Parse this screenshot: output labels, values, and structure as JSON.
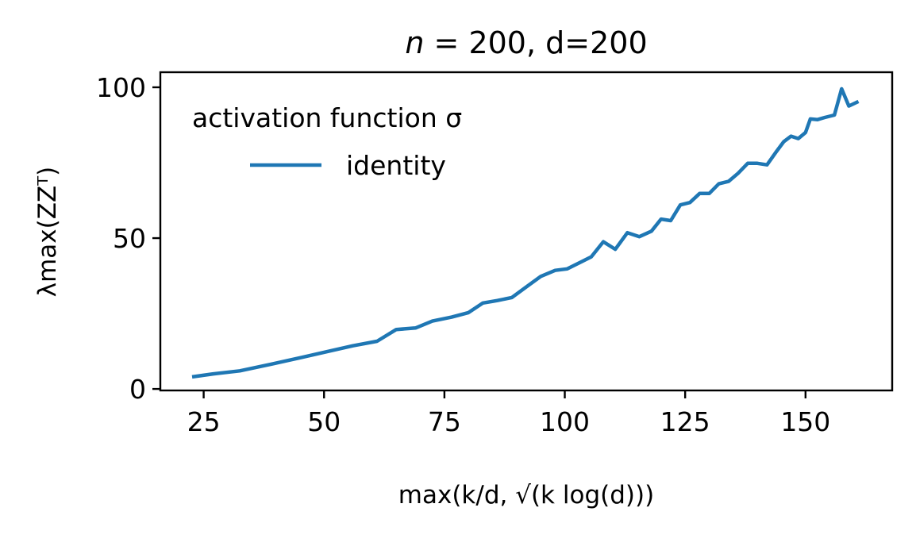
{
  "chart_data": {
    "type": "line",
    "title": "n = 200, d=200",
    "title_parts": {
      "italic": "n",
      "rest": " = 200, d=200"
    },
    "xlabel": "max(k/d, √(k log(d)))",
    "ylabel": "λmax(ZZᵀ)",
    "xlim": [
      16,
      168
    ],
    "ylim": [
      -0.5,
      105
    ],
    "xticks": [
      25,
      50,
      75,
      100,
      125,
      150
    ],
    "yticks": [
      0,
      50,
      100
    ],
    "xtick_labels": [
      "25",
      "50",
      "75",
      "100",
      "125",
      "150"
    ],
    "ytick_labels": [
      "0",
      "50",
      "100"
    ],
    "grid": false,
    "legend": {
      "placement": "top-left",
      "title": "activation function σ",
      "entries": [
        "identity"
      ]
    },
    "series": [
      {
        "name": "identity",
        "color": "#1f77b4",
        "x": [
          22.6,
          27.0,
          32.5,
          39.0,
          45.5,
          51.0,
          56.0,
          61.0,
          65.0,
          69.0,
          72.5,
          76.5,
          80.0,
          83.0,
          86.0,
          89.0,
          92.0,
          95.0,
          98.0,
          100.5,
          103.0,
          105.5,
          108.0,
          110.5,
          113.0,
          115.5,
          118.0,
          120.0,
          122.0,
          124.0,
          126.0,
          128.0,
          130.0,
          132.0,
          134.0,
          136.0,
          138.0,
          140.0,
          142.0,
          144.0,
          145.5,
          147.0,
          148.5,
          150.0,
          151.0,
          152.5,
          154.0,
          156.0,
          157.5,
          159.0,
          161.0
        ],
        "y": [
          4.0,
          5.0,
          6.0,
          8.2,
          10.5,
          12.5,
          14.3,
          15.8,
          19.7,
          20.2,
          22.5,
          23.8,
          25.3,
          28.5,
          29.3,
          30.3,
          33.8,
          37.3,
          39.3,
          39.8,
          41.8,
          43.8,
          48.8,
          46.3,
          51.8,
          50.5,
          52.3,
          56.3,
          55.8,
          61.0,
          61.8,
          64.8,
          64.8,
          68.0,
          68.8,
          71.5,
          74.8,
          74.8,
          74.3,
          78.8,
          82.0,
          83.8,
          83.0,
          85.0,
          89.5,
          89.3,
          90.0,
          90.8,
          99.5,
          93.8,
          95.3
        ]
      }
    ]
  }
}
